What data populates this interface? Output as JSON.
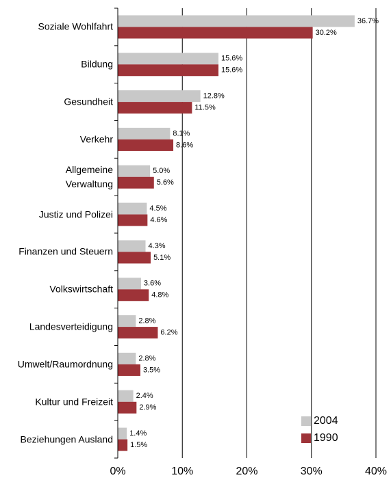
{
  "chart_data": {
    "type": "bar",
    "orientation": "horizontal",
    "categories": [
      "Soziale Wohlfahrt",
      "Bildung",
      "Gesundheit",
      "Verkehr",
      "Allgemeine\nVerwaltung",
      "Justiz und Polizei",
      "Finanzen und Steuern",
      "Volkswirtschaft",
      "Landesverteidigung",
      "Umwelt/Raumordnung",
      "Kultur und Freizeit",
      "Beziehungen Ausland"
    ],
    "series": [
      {
        "name": "2004",
        "color": "#c8c8c8",
        "values": [
          36.7,
          15.6,
          12.8,
          8.1,
          5.0,
          4.5,
          4.3,
          3.6,
          2.8,
          2.8,
          2.4,
          1.4
        ],
        "value_labels": [
          "36.7%",
          "15.6%",
          "12.8%",
          "8.1%",
          "5.0%",
          "4.5%",
          "4.3%",
          "3.6%",
          "2.8%",
          "2.8%",
          "2.4%",
          "1.4%"
        ]
      },
      {
        "name": "1990",
        "color": "#9e3338",
        "values": [
          30.2,
          15.6,
          11.5,
          8.6,
          5.6,
          4.6,
          5.1,
          4.8,
          6.2,
          3.5,
          2.9,
          1.5
        ],
        "value_labels": [
          "30.2%",
          "15.6%",
          "11.5%",
          "8.6%",
          "5.6%",
          "4.6%",
          "5.1%",
          "4.8%",
          "6.2%",
          "3.5%",
          "2.9%",
          "1.5%"
        ]
      }
    ],
    "xlim": [
      0,
      40
    ],
    "xticks": [
      {
        "value": 0,
        "label": "0%"
      },
      {
        "value": 10,
        "label": "10%"
      },
      {
        "value": 20,
        "label": "20%"
      },
      {
        "value": 30,
        "label": "30%"
      },
      {
        "value": 40,
        "label": "40%"
      }
    ],
    "grid": true,
    "legend": "lower right"
  }
}
